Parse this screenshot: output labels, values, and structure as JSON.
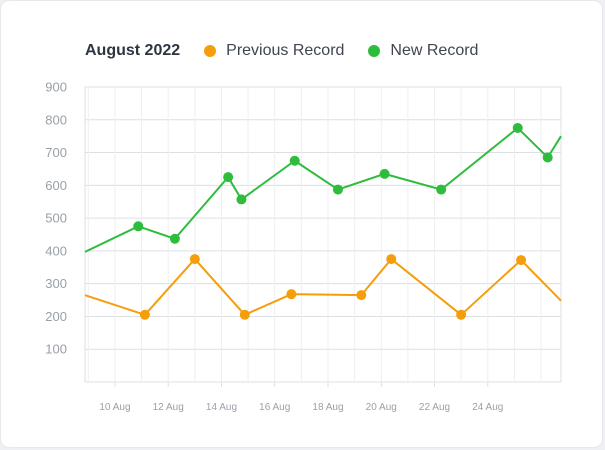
{
  "chart_data": {
    "type": "line",
    "title": "August 2022",
    "x_ticks": [
      "10 Aug",
      "12 Aug",
      "14 Aug",
      "16 Aug",
      "18 Aug",
      "20 Aug",
      "22 Aug",
      "24 Aug"
    ],
    "y_ticks": [
      100,
      200,
      300,
      400,
      500,
      600,
      700,
      800,
      900
    ],
    "ylim": [
      0,
      900
    ],
    "xlim": [
      "2022-08-08T21:00",
      "2022-08-26T18:00"
    ],
    "grid": true,
    "legend_position": "top-left",
    "series": [
      {
        "name": "Previous Record",
        "color": "#f59e0b",
        "points": [
          [
            "2022-08-08T21:00",
            265
          ],
          [
            "2022-08-11T03:00",
            205
          ],
          [
            "2022-08-13T00:00",
            375
          ],
          [
            "2022-08-14T21:00",
            205
          ],
          [
            "2022-08-16T15:00",
            268
          ],
          [
            "2022-08-19T06:00",
            265
          ],
          [
            "2022-08-20T09:00",
            375
          ],
          [
            "2022-08-23T00:00",
            205
          ],
          [
            "2022-08-25T06:00",
            372
          ],
          [
            "2022-08-26T18:00",
            248
          ]
        ]
      },
      {
        "name": "New Record",
        "color": "#2ebc3c",
        "points": [
          [
            "2022-08-08T21:00",
            397
          ],
          [
            "2022-08-10T21:00",
            475
          ],
          [
            "2022-08-12T06:00",
            437
          ],
          [
            "2022-08-14T06:00",
            625
          ],
          [
            "2022-08-14T18:00",
            557
          ],
          [
            "2022-08-16T18:00",
            675
          ],
          [
            "2022-08-18T09:00",
            587
          ],
          [
            "2022-08-20T03:00",
            635
          ],
          [
            "2022-08-22T06:00",
            587
          ],
          [
            "2022-08-25T03:00",
            775
          ],
          [
            "2022-08-26T06:00",
            685
          ],
          [
            "2022-08-26T18:00",
            750
          ]
        ]
      }
    ]
  }
}
